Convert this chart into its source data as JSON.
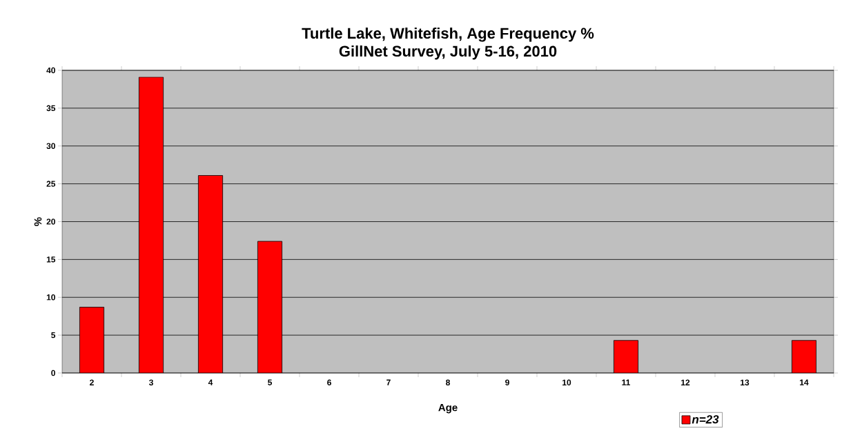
{
  "chart_data": {
    "type": "bar",
    "title": "Turtle Lake, Whitefish, Age Frequency %\nGillNet Survey, July 5-16, 2010",
    "xlabel": "Age",
    "ylabel": "%",
    "categories": [
      "2",
      "3",
      "4",
      "5",
      "6",
      "7",
      "8",
      "9",
      "10",
      "11",
      "12",
      "13",
      "14"
    ],
    "series": [
      {
        "name": "n=23",
        "color": "#ff0000",
        "values": [
          8.7,
          39.1,
          26.1,
          17.4,
          0,
          0,
          0,
          0,
          0,
          4.3,
          0,
          0,
          4.3
        ]
      }
    ],
    "ylim": [
      0,
      40
    ],
    "yticks": [
      0,
      5,
      10,
      15,
      20,
      25,
      30,
      35,
      40
    ],
    "grid": "y",
    "legend": "bottom right"
  }
}
